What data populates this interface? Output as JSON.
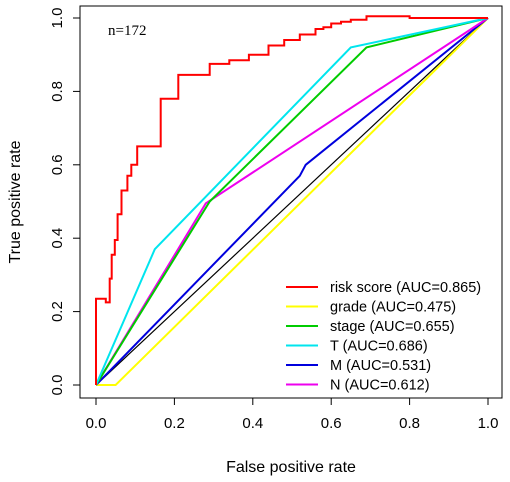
{
  "chart_data": {
    "type": "line",
    "annotation": "n=172",
    "xlabel": "False positive rate",
    "ylabel": "True positive rate",
    "xlim": [
      0,
      1
    ],
    "ylim": [
      0,
      1
    ],
    "x_ticks": [
      "0.0",
      "0.2",
      "0.4",
      "0.6",
      "0.8",
      "1.0"
    ],
    "y_ticks": [
      "0.0",
      "0.2",
      "0.4",
      "0.6",
      "0.8",
      "1.0"
    ],
    "grid": false,
    "legend_position": "bottom-right",
    "reference_line": {
      "x": [
        0,
        1
      ],
      "y": [
        0,
        1
      ],
      "color": "#000000"
    },
    "series": [
      {
        "name": "risk score (AUC=0.865)",
        "color": "#ff0000",
        "points": [
          [
            0,
            0
          ],
          [
            0,
            0.235
          ],
          [
            0.025,
            0.235
          ],
          [
            0.025,
            0.225
          ],
          [
            0.035,
            0.225
          ],
          [
            0.035,
            0.29
          ],
          [
            0.04,
            0.29
          ],
          [
            0.04,
            0.355
          ],
          [
            0.048,
            0.355
          ],
          [
            0.048,
            0.395
          ],
          [
            0.055,
            0.395
          ],
          [
            0.055,
            0.465
          ],
          [
            0.065,
            0.465
          ],
          [
            0.065,
            0.53
          ],
          [
            0.08,
            0.53
          ],
          [
            0.08,
            0.57
          ],
          [
            0.09,
            0.57
          ],
          [
            0.09,
            0.6
          ],
          [
            0.105,
            0.6
          ],
          [
            0.105,
            0.65
          ],
          [
            0.165,
            0.65
          ],
          [
            0.165,
            0.78
          ],
          [
            0.21,
            0.78
          ],
          [
            0.21,
            0.845
          ],
          [
            0.29,
            0.845
          ],
          [
            0.29,
            0.875
          ],
          [
            0.34,
            0.875
          ],
          [
            0.34,
            0.885
          ],
          [
            0.39,
            0.885
          ],
          [
            0.39,
            0.9
          ],
          [
            0.44,
            0.9
          ],
          [
            0.44,
            0.925
          ],
          [
            0.48,
            0.925
          ],
          [
            0.48,
            0.94
          ],
          [
            0.52,
            0.94
          ],
          [
            0.52,
            0.955
          ],
          [
            0.56,
            0.955
          ],
          [
            0.56,
            0.97
          ],
          [
            0.58,
            0.97
          ],
          [
            0.58,
            0.975
          ],
          [
            0.6,
            0.975
          ],
          [
            0.6,
            0.985
          ],
          [
            0.625,
            0.985
          ],
          [
            0.625,
            0.99
          ],
          [
            0.65,
            0.99
          ],
          [
            0.65,
            0.995
          ],
          [
            0.69,
            0.995
          ],
          [
            0.69,
            1.005
          ],
          [
            0.8,
            1.005
          ],
          [
            0.8,
            1.0
          ],
          [
            1,
            1.0
          ]
        ]
      },
      {
        "name": "grade (AUC=0.475)",
        "color": "#ffff00",
        "points": [
          [
            0,
            0
          ],
          [
            0.05,
            0
          ],
          [
            1,
            1
          ]
        ]
      },
      {
        "name": "stage (AUC=0.655)",
        "color": "#00cc00",
        "points": [
          [
            0,
            0
          ],
          [
            0.29,
            0.5
          ],
          [
            0.69,
            0.92
          ],
          [
            1,
            1
          ]
        ]
      },
      {
        "name": "T (AUC=0.686)",
        "color": "#00e5ee",
        "points": [
          [
            0,
            0
          ],
          [
            0.15,
            0.37
          ],
          [
            0.65,
            0.92
          ],
          [
            1,
            1
          ]
        ]
      },
      {
        "name": "M (AUC=0.531)",
        "color": "#0000dd",
        "points": [
          [
            0,
            0
          ],
          [
            0.52,
            0.57
          ],
          [
            0.535,
            0.6
          ],
          [
            1,
            1
          ]
        ]
      },
      {
        "name": "N (AUC=0.612)",
        "color": "#ee00ee",
        "points": [
          [
            0,
            0
          ],
          [
            0.28,
            0.495
          ],
          [
            1,
            1
          ]
        ]
      }
    ]
  }
}
